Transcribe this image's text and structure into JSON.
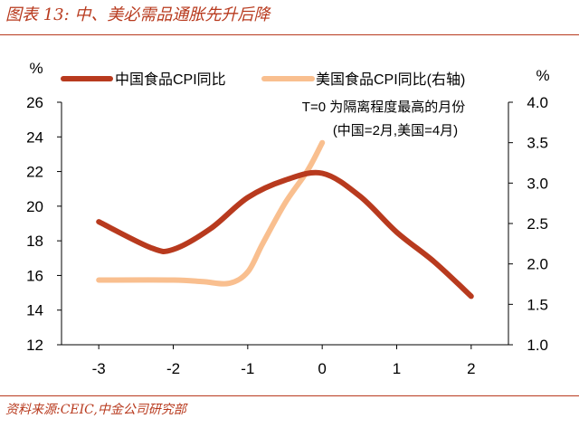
{
  "figure_title": "图表 13:  中、美必需品通胀先升后降",
  "source_note": "资料来源:CEIC,中金公司研究部",
  "colors": {
    "accent": "#b83a1e",
    "series_left": "#b83a1e",
    "series_right": "#f9bf8f"
  },
  "chart_data": {
    "type": "line",
    "x": [
      -3,
      -2,
      -1,
      0,
      1,
      2
    ],
    "x_ticks": [
      "-3",
      "-2",
      "-1",
      "0",
      "1",
      "2"
    ],
    "left_axis": {
      "unit": "%",
      "ylim": [
        12,
        26
      ],
      "ticks": [
        "12",
        "14",
        "16",
        "18",
        "20",
        "22",
        "24",
        "26"
      ]
    },
    "right_axis": {
      "unit": "%",
      "ylim": [
        1.0,
        4.0
      ],
      "ticks": [
        "1.0",
        "1.5",
        "2.0",
        "2.5",
        "3.0",
        "3.5",
        "4.0"
      ]
    },
    "series": [
      {
        "name": "中国食品CPI同比",
        "axis": "left",
        "x": [
          -3,
          -2.3,
          -2,
          -1.5,
          -1,
          -0.5,
          0,
          0.5,
          1,
          1.5,
          2
        ],
        "y": [
          19.1,
          17.6,
          17.5,
          18.7,
          20.5,
          21.5,
          21.9,
          20.6,
          18.5,
          16.8,
          14.8
        ]
      },
      {
        "name": "美国食品CPI同比(右轴)",
        "axis": "right",
        "x": [
          -3,
          -2,
          -1.6,
          -1.25,
          -1,
          -0.8,
          -0.5,
          -0.2,
          0
        ],
        "y": [
          1.8,
          1.8,
          1.78,
          1.76,
          1.9,
          2.25,
          2.75,
          3.15,
          3.5
        ]
      }
    ],
    "annotation": [
      "T=0 为隔离程度最高的月份",
      "(中国=2月,美国=4月)"
    ],
    "grid": false,
    "legend_position": "top"
  }
}
